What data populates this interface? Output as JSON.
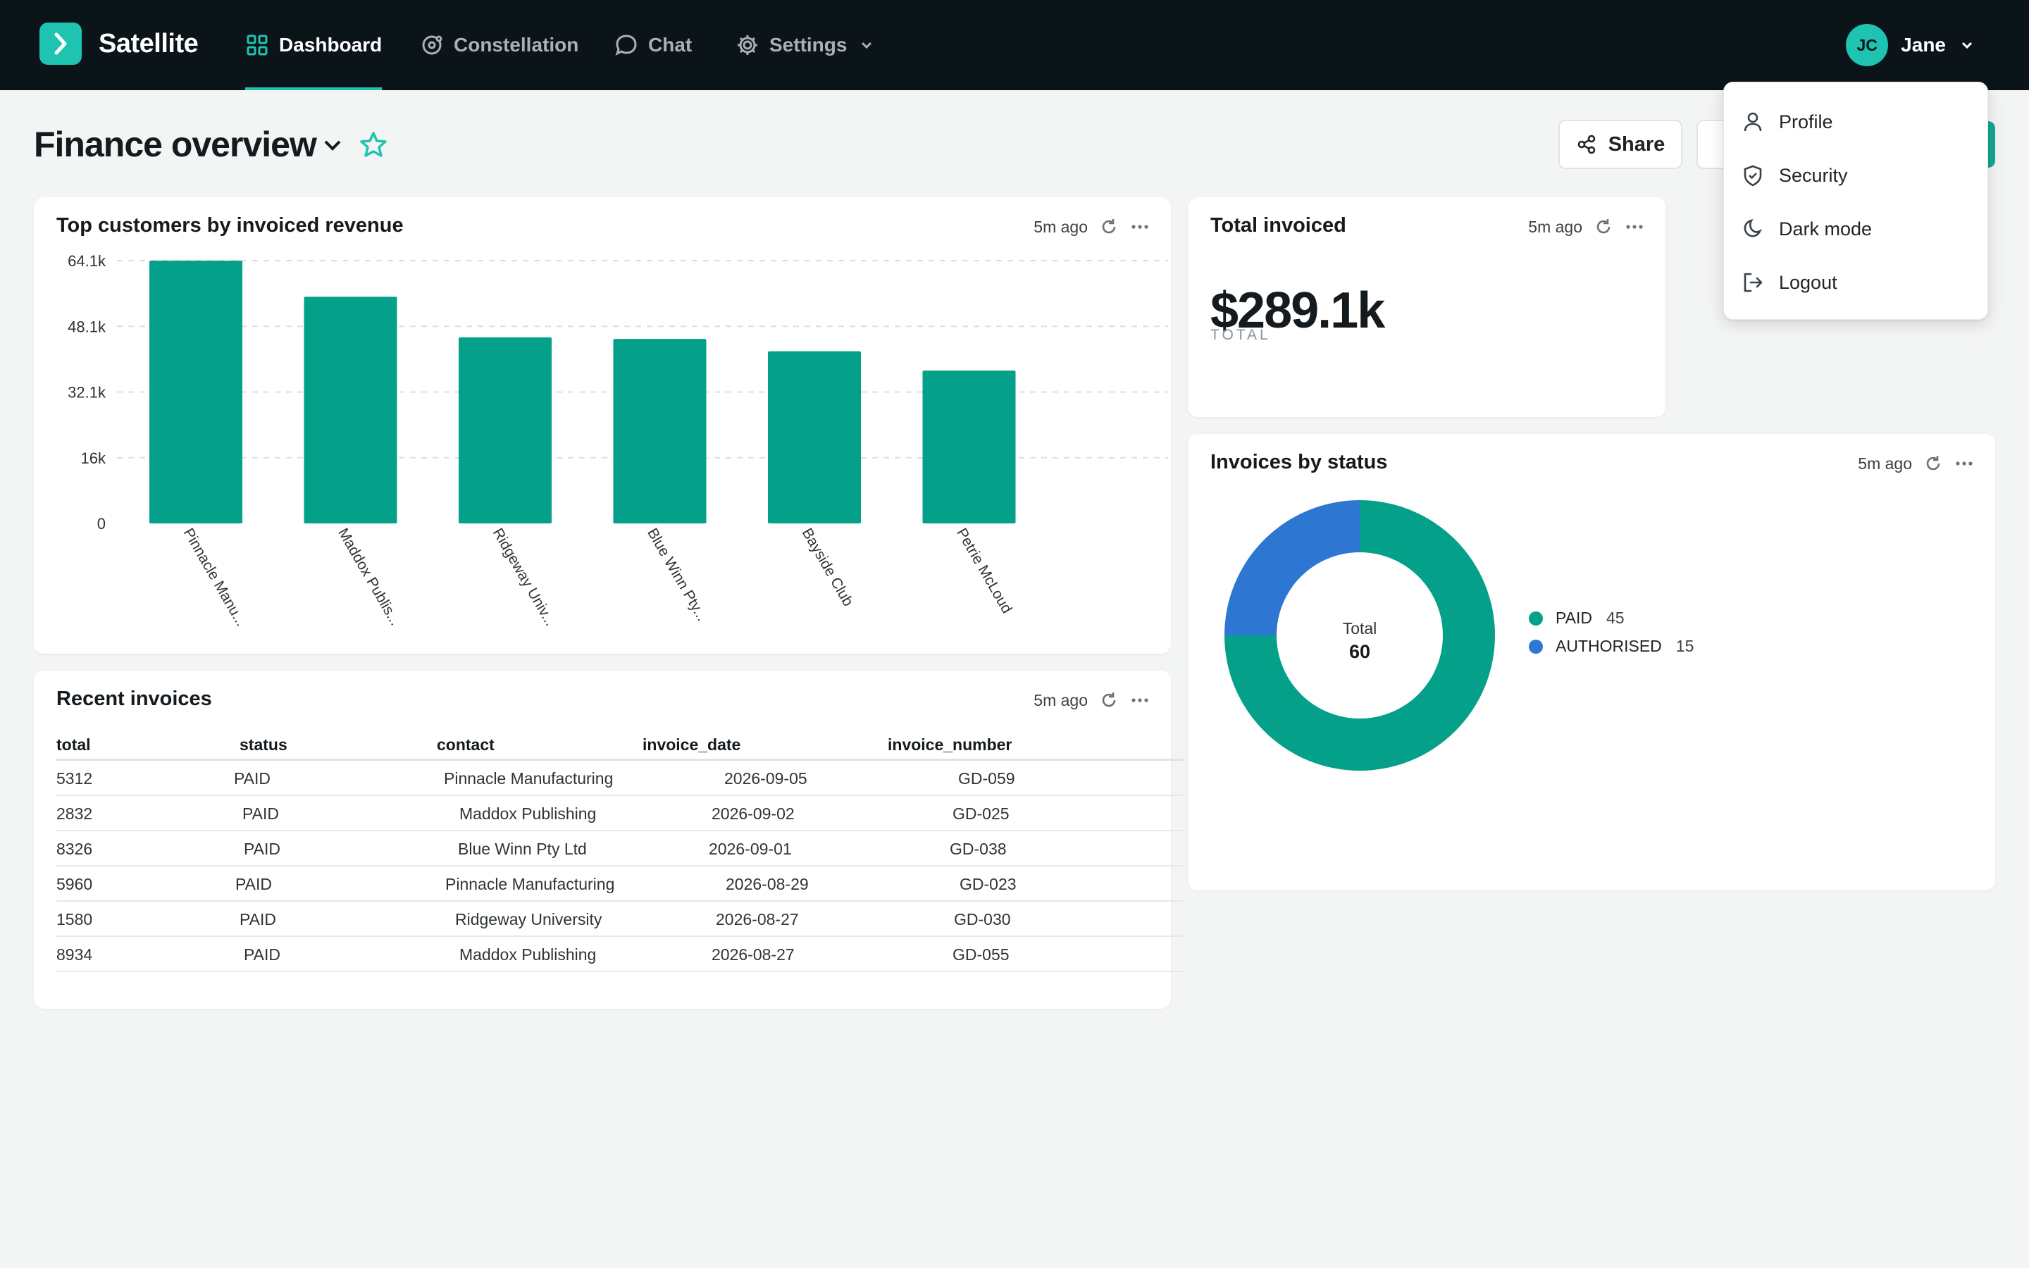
{
  "app": {
    "name": "Satellite"
  },
  "nav": {
    "items": [
      {
        "label": "Dashboard",
        "icon": "grid-icon",
        "active": true
      },
      {
        "label": "Constellation",
        "icon": "orbit-icon",
        "active": false
      },
      {
        "label": "Chat",
        "icon": "chat-bubble-icon",
        "active": false
      },
      {
        "label": "Settings",
        "icon": "gear-icon",
        "active": false
      }
    ],
    "user": {
      "initials": "JC",
      "name": "Jane"
    }
  },
  "user_menu": {
    "items": [
      {
        "label": "Profile",
        "icon": "person-icon"
      },
      {
        "label": "Security",
        "icon": "shield-icon"
      },
      {
        "label": "Dark mode",
        "icon": "moon-icon"
      },
      {
        "label": "Logout",
        "icon": "logout-icon"
      }
    ]
  },
  "page": {
    "title": "Finance overview",
    "share_label": "Share"
  },
  "cards": {
    "top_customers": {
      "title": "Top customers by invoiced revenue",
      "updated": "5m ago"
    },
    "total_invoiced": {
      "title": "Total invoiced",
      "updated": "5m ago",
      "value": "$289.1k",
      "label": "TOTAL"
    },
    "invoices_by_status": {
      "title": "Invoices by status",
      "updated": "5m ago",
      "center_label": "Total",
      "center_value": "60"
    },
    "recent_invoices": {
      "title": "Recent invoices",
      "updated": "5m ago",
      "columns": [
        "total",
        "status",
        "contact",
        "invoice_date",
        "invoice_number"
      ],
      "rows": [
        [
          "5312",
          "PAID",
          "Pinnacle Manufacturing",
          "2026-09-05",
          "GD-059"
        ],
        [
          "2832",
          "PAID",
          "Maddox Publishing",
          "2026-09-02",
          "GD-025"
        ],
        [
          "8326",
          "PAID",
          "Blue Winn Pty Ltd",
          "2026-09-01",
          "GD-038"
        ],
        [
          "5960",
          "PAID",
          "Pinnacle Manufacturing",
          "2026-08-29",
          "GD-023"
        ],
        [
          "1580",
          "PAID",
          "Ridgeway University",
          "2026-08-27",
          "GD-030"
        ],
        [
          "8934",
          "PAID",
          "Maddox Publishing",
          "2026-08-27",
          "GD-055"
        ]
      ]
    }
  },
  "colors": {
    "brand": "#1ec3b1",
    "bar": "#05a08a",
    "paid": "#05a08a",
    "authorised": "#2d77d2",
    "nav_bg": "#0b1419"
  },
  "chart_data": [
    {
      "type": "bar",
      "title": "Top customers by invoiced revenue",
      "categories": [
        "Pinnacle Manu...",
        "Maddox Publis...",
        "Ridgeway Univ...",
        "Blue Winn Pty...",
        "Bayside Club",
        "Petrie McLoud"
      ],
      "values": [
        64100,
        55300,
        45400,
        45000,
        42000,
        37300
      ],
      "y_ticks": [
        "0",
        "16k",
        "32.1k",
        "48.1k",
        "64.1k"
      ],
      "y_tick_values": [
        0,
        16025,
        32050,
        48075,
        64100
      ],
      "ylim": [
        0,
        64100
      ],
      "grid": true
    },
    {
      "type": "pie",
      "title": "Invoices by status",
      "labels": [
        "PAID",
        "AUTHORISED"
      ],
      "values": [
        45,
        15
      ],
      "donut": true,
      "legend": "right"
    }
  ]
}
